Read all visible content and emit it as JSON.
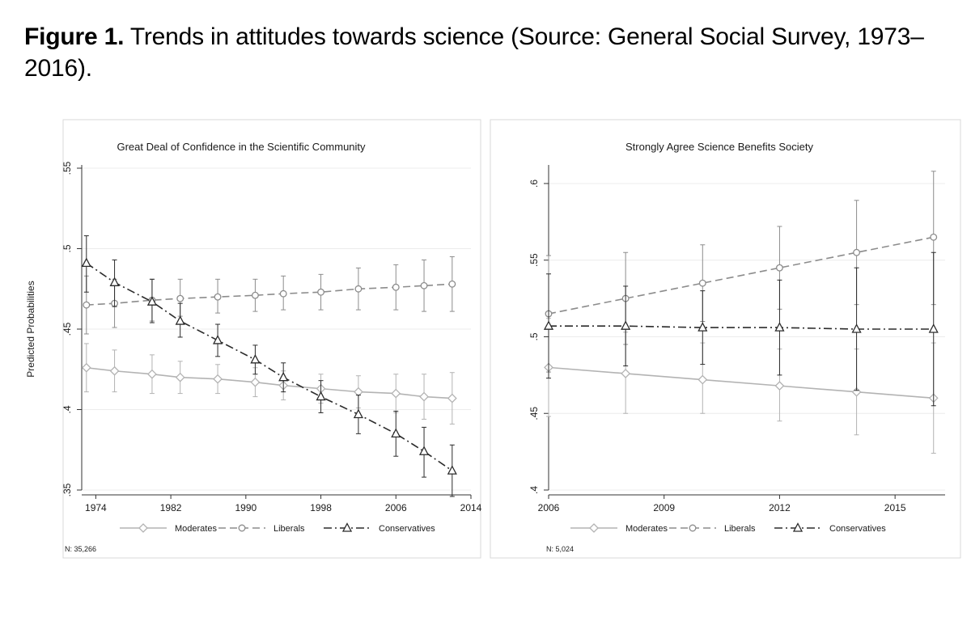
{
  "caption": {
    "label": "Figure 1.",
    "text": "Trends in attitudes towards science (Source: General Social Survey, 1973–2016)."
  },
  "chart_data": [
    {
      "type": "line",
      "title": "Great Deal of Confidence in the Scientific Community",
      "xlabel": "",
      "ylabel": "Predicted Probabilities",
      "xlim": [
        1972.5,
        2014
      ],
      "ylim": [
        0.35,
        0.55
      ],
      "xticks": [
        1974,
        1982,
        1990,
        1998,
        2006,
        2014
      ],
      "yticks": [
        0.35,
        0.4,
        0.45,
        0.5,
        0.55
      ],
      "ytick_labels": [
        ".35",
        ".4",
        ".45",
        ".5",
        ".55"
      ],
      "x": [
        1973,
        1976,
        1980,
        1983,
        1987,
        1991,
        1994,
        1998,
        2002,
        2006,
        2009,
        2012
      ],
      "series": [
        {
          "name": "Moderates",
          "style": "solid",
          "marker": "diamond",
          "color": "#b3b3b3",
          "values": [
            0.426,
            0.424,
            0.422,
            0.42,
            0.419,
            0.417,
            0.415,
            0.413,
            0.411,
            0.41,
            0.408,
            0.407
          ],
          "ci": [
            [
              0.411,
              0.441
            ],
            [
              0.411,
              0.437
            ],
            [
              0.41,
              0.434
            ],
            [
              0.41,
              0.43
            ],
            [
              0.41,
              0.428
            ],
            [
              0.408,
              0.426
            ],
            [
              0.406,
              0.424
            ],
            [
              0.404,
              0.422
            ],
            [
              0.401,
              0.421
            ],
            [
              0.398,
              0.422
            ],
            [
              0.394,
              0.422
            ],
            [
              0.391,
              0.423
            ]
          ]
        },
        {
          "name": "Liberals",
          "style": "dash",
          "marker": "circle",
          "color": "#8c8c8c",
          "values": [
            0.465,
            0.466,
            0.468,
            0.469,
            0.47,
            0.471,
            0.472,
            0.473,
            0.475,
            0.476,
            0.477,
            0.478
          ],
          "ci": [
            [
              0.447,
              0.483
            ],
            [
              0.451,
              0.481
            ],
            [
              0.455,
              0.481
            ],
            [
              0.458,
              0.481
            ],
            [
              0.46,
              0.481
            ],
            [
              0.461,
              0.481
            ],
            [
              0.462,
              0.483
            ],
            [
              0.462,
              0.484
            ],
            [
              0.462,
              0.488
            ],
            [
              0.462,
              0.49
            ],
            [
              0.461,
              0.493
            ],
            [
              0.461,
              0.495
            ]
          ]
        },
        {
          "name": "Conservatives",
          "style": "dashdot",
          "marker": "triangle",
          "color": "#2b2b2b",
          "values": [
            0.491,
            0.479,
            0.467,
            0.455,
            0.443,
            0.431,
            0.42,
            0.408,
            0.397,
            0.385,
            0.374,
            0.362
          ],
          "ci": [
            [
              0.473,
              0.508
            ],
            [
              0.464,
              0.493
            ],
            [
              0.454,
              0.481
            ],
            [
              0.445,
              0.466
            ],
            [
              0.433,
              0.453
            ],
            [
              0.422,
              0.44
            ],
            [
              0.411,
              0.429
            ],
            [
              0.398,
              0.418
            ],
            [
              0.385,
              0.409
            ],
            [
              0.371,
              0.399
            ],
            [
              0.358,
              0.389
            ],
            [
              0.346,
              0.378
            ]
          ]
        }
      ],
      "legend": [
        "Moderates",
        "Liberals",
        "Conservatives"
      ],
      "legend_position": "bottom",
      "note": "N: 35,266"
    },
    {
      "type": "line",
      "title": "Strongly Agree Science Benefits Society",
      "xlabel": "",
      "ylabel": "",
      "xlim": [
        2006,
        2016.3
      ],
      "ylim": [
        0.4,
        0.61
      ],
      "xticks": [
        2006,
        2009,
        2012,
        2015
      ],
      "yticks": [
        0.4,
        0.45,
        0.5,
        0.55,
        0.6
      ],
      "ytick_labels": [
        ".4",
        ".45",
        ".5",
        ".55",
        ".6"
      ],
      "x": [
        2006,
        2008,
        2010,
        2012,
        2014,
        2016
      ],
      "series": [
        {
          "name": "Moderates",
          "style": "solid",
          "marker": "diamond",
          "color": "#b3b3b3",
          "values": [
            0.48,
            0.476,
            0.472,
            0.468,
            0.464,
            0.46
          ],
          "ci": [
            [
              0.448,
              0.512
            ],
            [
              0.45,
              0.503
            ],
            [
              0.45,
              0.496
            ],
            [
              0.445,
              0.492
            ],
            [
              0.436,
              0.492
            ],
            [
              0.424,
              0.496
            ]
          ]
        },
        {
          "name": "Liberals",
          "style": "dash",
          "marker": "circle",
          "color": "#8c8c8c",
          "values": [
            0.515,
            0.525,
            0.535,
            0.545,
            0.555,
            0.565
          ],
          "ci": [
            [
              0.477,
              0.553
            ],
            [
              0.495,
              0.555
            ],
            [
              0.51,
              0.56
            ],
            [
              0.518,
              0.572
            ],
            [
              0.521,
              0.589
            ],
            [
              0.521,
              0.608
            ]
          ]
        },
        {
          "name": "Conservatives",
          "style": "dashdot",
          "marker": "triangle",
          "color": "#2b2b2b",
          "values": [
            0.507,
            0.507,
            0.506,
            0.506,
            0.505,
            0.505
          ],
          "ci": [
            [
              0.473,
              0.541
            ],
            [
              0.481,
              0.533
            ],
            [
              0.482,
              0.53
            ],
            [
              0.475,
              0.537
            ],
            [
              0.465,
              0.545
            ],
            [
              0.455,
              0.555
            ]
          ]
        }
      ],
      "legend": [
        "Moderates",
        "Liberals",
        "Conservatives"
      ],
      "legend_position": "bottom",
      "note": "N: 5,024"
    }
  ]
}
